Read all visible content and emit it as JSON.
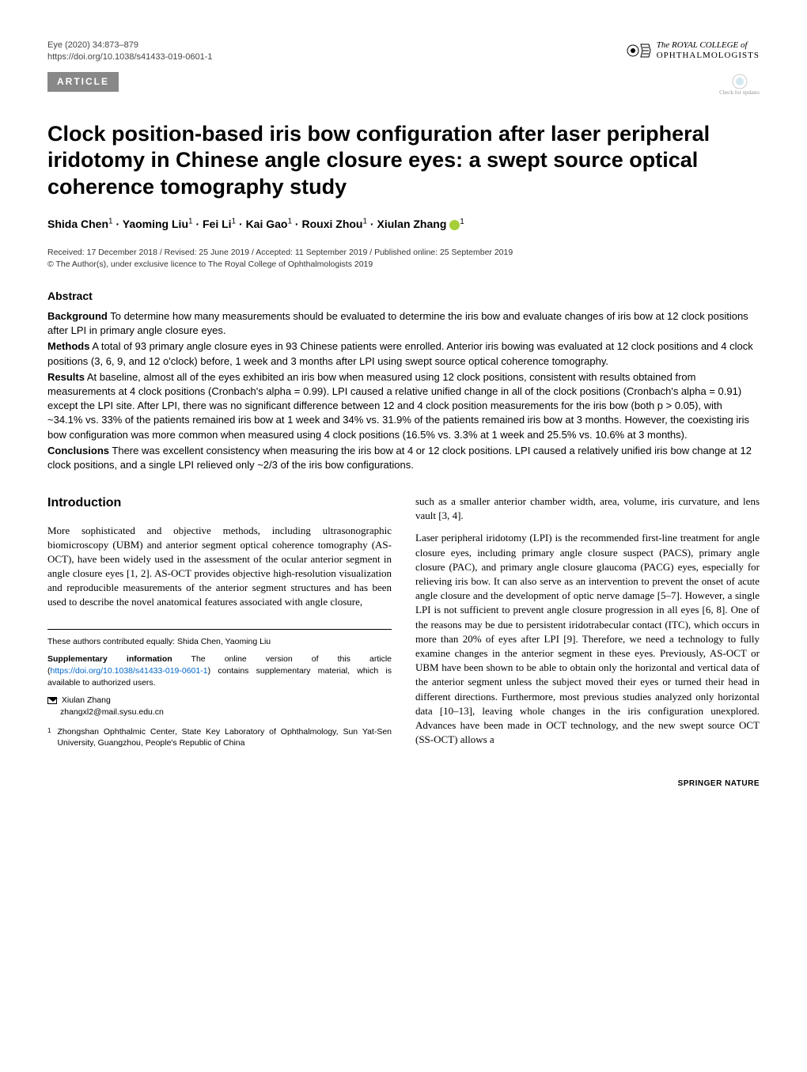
{
  "header": {
    "journal_line": "Eye (2020) 34:873–879",
    "doi_line": "https://doi.org/10.1038/s41433-019-0601-1",
    "logo_line1": "The ROYAL COLLEGE of",
    "logo_line2": "OPHTHALMOLOGISTS",
    "article_tag": "ARTICLE",
    "check_updates": "Check for updates"
  },
  "title": "Clock position-based iris bow configuration after laser peripheral iridotomy in Chinese angle closure eyes: a swept source optical coherence tomography study",
  "authors_html": "Shida Chen<sup>1</sup> · Yaoming Liu<sup>1</sup> · Fei Li<sup>1</sup> · Kai Gao<sup>1</sup> · Rouxi Zhou<sup>1</sup> · Xiulan Zhang",
  "author_last_sup": "1",
  "meta": {
    "dates": "Received: 17 December 2018 / Revised: 25 June 2019 / Accepted: 11 September 2019 / Published online: 25 September 2019",
    "copyright": "© The Author(s), under exclusive licence to The Royal College of Ophthalmologists 2019"
  },
  "abstract": {
    "heading": "Abstract",
    "background_label": "Background",
    "background_text": " To determine how many measurements should be evaluated to determine the iris bow and evaluate changes of iris bow at 12 clock positions after LPI in primary angle closure eyes.",
    "methods_label": "Methods",
    "methods_text": " A total of 93 primary angle closure eyes in 93 Chinese patients were enrolled. Anterior iris bowing was evaluated at 12 clock positions and 4 clock positions (3, 6, 9, and 12 o'clock) before, 1 week and 3 months after LPI using swept source optical coherence tomography.",
    "results_label": "Results",
    "results_text": " At baseline, almost all of the eyes exhibited an iris bow when measured using 12 clock positions, consistent with results obtained from measurements at 4 clock positions (Cronbach's alpha = 0.99). LPI caused a relative unified change in all of the clock positions (Cronbach's alpha = 0.91) except the LPI site. After LPI, there was no significant difference between 12 and 4 clock position measurements for the iris bow (both p > 0.05), with ~34.1% vs. 33% of the patients remained iris bow at 1 week and 34% vs. 31.9% of the patients remained iris bow at 3 months. However, the coexisting iris bow configuration was more common when measured using 4 clock positions (16.5% vs. 3.3% at 1 week and 25.5% vs. 10.6% at 3 months).",
    "conclusions_label": "Conclusions",
    "conclusions_text": " There was excellent consistency when measuring the iris bow at 4 or 12 clock positions. LPI caused a relatively unified iris bow change at 12 clock positions, and a single LPI relieved only ~2/3 of the iris bow configurations."
  },
  "intro": {
    "heading": "Introduction",
    "col1_p1": "More sophisticated and objective methods, including ultrasonographic biomicroscopy (UBM) and anterior segment optical coherence tomography (AS-OCT), have been widely used in the assessment of the ocular anterior segment in angle closure eyes [1, 2]. AS-OCT provides objective high-resolution visualization and reproducible measurements of the anterior segment structures and has been used to describe the novel anatomical features associated with angle closure,",
    "col2_p1": "such as a smaller anterior chamber width, area, volume, iris curvature, and lens vault [3, 4].",
    "col2_p2": "Laser peripheral iridotomy (LPI) is the recommended first-line treatment for angle closure eyes, including primary angle closure suspect (PACS), primary angle closure (PAC), and primary angle closure glaucoma (PACG) eyes, especially for relieving iris bow. It can also serve as an intervention to prevent the onset of acute angle closure and the development of optic nerve damage [5–7]. However, a single LPI is not sufficient to prevent angle closure progression in all eyes [6, 8]. One of the reasons may be due to persistent iridotrabecular contact (ITC), which occurs in more than 20% of eyes after LPI [9]. Therefore, we need a technology to fully examine changes in the anterior segment in these eyes. Previously, AS-OCT or UBM have been shown to be able to obtain only the horizontal and vertical data of the anterior segment unless the subject moved their eyes or turned their head in different directions. Furthermore, most previous studies analyzed only horizontal data [10–13], leaving whole changes in the iris configuration unexplored. Advances have been made in OCT technology, and the new swept source OCT (SS-OCT) allows a"
  },
  "footnotes": {
    "contrib": "These authors contributed equally: Shida Chen, Yaoming Liu",
    "supp_label": "Supplementary information",
    "supp_text": " The online version of this article (",
    "supp_link": "https://doi.org/10.1038/s41433-019-0601-1",
    "supp_text2": ") contains supplementary material, which is available to authorized users.",
    "corresponding_name": "Xiulan Zhang",
    "corresponding_email": "zhangxl2@mail.sysu.edu.cn",
    "affiliation_num": "1",
    "affiliation_text": "Zhongshan Ophthalmic Center, State Key Laboratory of Ophthalmology, Sun Yat-Sen University, Guangzhou, People's Republic of China"
  },
  "footer": "SPRINGER NATURE",
  "colors": {
    "tag_bg": "#888888",
    "link": "#0066cc",
    "orcid": "#a6ce39"
  }
}
